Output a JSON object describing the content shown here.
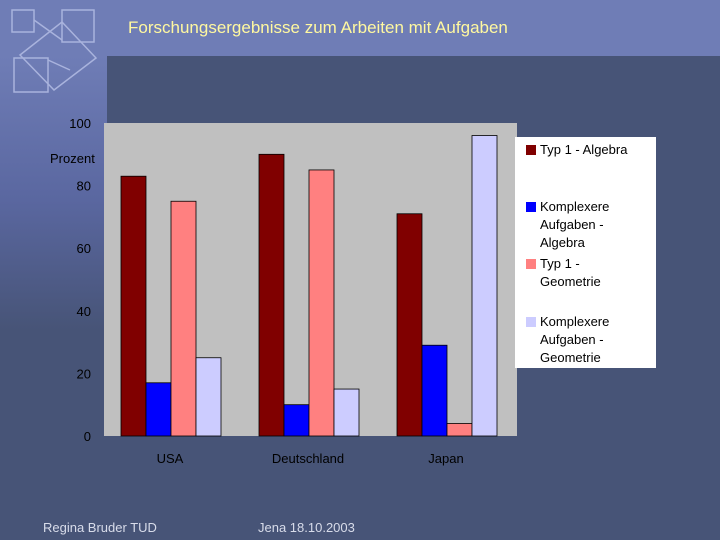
{
  "slide": {
    "title": "Forschungsergebnisse zum Arbeiten mit Aufgaben",
    "footer_left": "Regina Bruder  TUD",
    "footer_center": "Jena 18.10.2003"
  },
  "colors": {
    "background": "#475477",
    "band": "#6F7DB6",
    "title_text": "#FFF8A0"
  },
  "chart_data": {
    "type": "bar",
    "title": "",
    "xlabel": "",
    "ylabel": "Prozent",
    "ylim": [
      0,
      100
    ],
    "yticks": [
      0,
      20,
      40,
      60,
      80,
      100
    ],
    "grid": false,
    "legend_position": "right",
    "categories": [
      "USA",
      "Deutschland",
      "Japan"
    ],
    "series": [
      {
        "name": "Typ 1  - Algebra",
        "legend_lines": [
          "Typ 1  - Algebra"
        ],
        "color": "#800000",
        "values": [
          83,
          90,
          71
        ]
      },
      {
        "name": "Komplexere Aufgaben - Algebra",
        "legend_lines": [
          "Komplexere",
          "Aufgaben -",
          "Algebra"
        ],
        "color": "#0000FF",
        "values": [
          17,
          10,
          29
        ]
      },
      {
        "name": "Typ 1  - Geometrie",
        "legend_lines": [
          "Typ 1  -",
          "Geometrie"
        ],
        "color": "#FF8080",
        "values": [
          75,
          85,
          4
        ]
      },
      {
        "name": "Komplexere Aufgaben - Geometrie",
        "legend_lines": [
          "Komplexere",
          "Aufgaben -",
          "Geometrie"
        ],
        "color": "#CCCCFF",
        "values": [
          25,
          15,
          96
        ]
      }
    ]
  }
}
